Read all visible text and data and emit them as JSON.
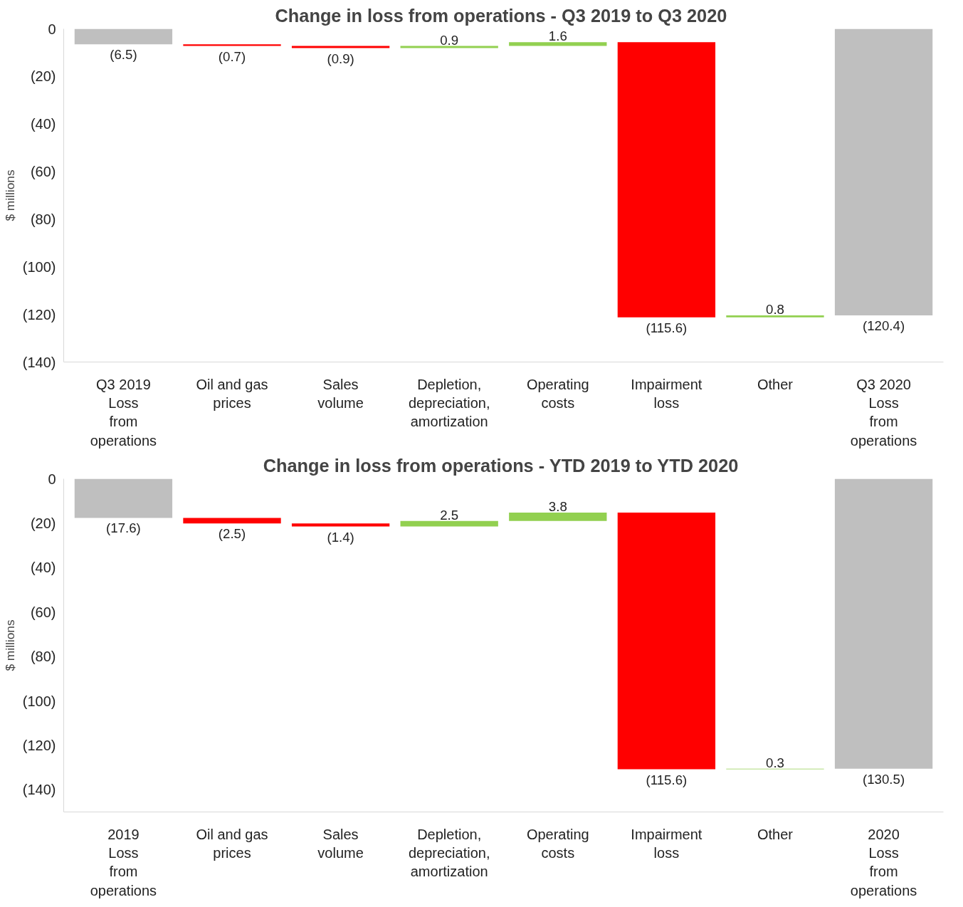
{
  "chart_data": [
    {
      "type": "bar",
      "title": "Change in loss from operations  - Q3 2019 to Q3 2020",
      "ylabel": "$ millions",
      "categories": [
        "Q3 2019\nLoss\nfrom\noperations",
        "Oil and gas\nprices",
        "Sales\nvolume",
        "Depletion,\ndepreciation,\namortization",
        "Operating\ncosts",
        "Impairment\nloss",
        "Other",
        "Q3 2020\nLoss\nfrom\noperations"
      ],
      "values": [
        -6.5,
        -0.7,
        -0.9,
        0.9,
        1.6,
        -115.6,
        0.8,
        -120.4
      ],
      "base": [
        0,
        -6.5,
        -7.2,
        -8.1,
        -7.2,
        -5.6,
        -121.2,
        0
      ],
      "colors": [
        "#bfbfbf",
        "#ff0000",
        "#ff0000",
        "#92d050",
        "#92d050",
        "#ff0000",
        "#92d050",
        "#bfbfbf"
      ],
      "value_labels": [
        "(6.5)",
        "(0.7)",
        "(0.9)",
        "0.9",
        "1.6",
        "(115.6)",
        "0.8",
        "(120.4)"
      ],
      "ylim": [
        -140,
        0
      ],
      "yticks": [
        0,
        {
          "value": -20,
          "label": "(20)"
        },
        {
          "value": -40,
          "label": "(40)"
        },
        {
          "value": -60,
          "label": "(60)"
        },
        {
          "value": -80,
          "label": "(80)"
        },
        {
          "value": -100,
          "label": "(100)"
        },
        {
          "value": -120,
          "label": "(120)"
        },
        {
          "value": -140,
          "label": "(140)"
        }
      ]
    },
    {
      "type": "bar",
      "title": "Change in loss from operations  - YTD 2019 to YTD 2020",
      "ylabel": "$ millions",
      "categories": [
        "2019\nLoss\nfrom\noperations",
        "Oil and gas\nprices",
        "Sales\nvolume",
        "Depletion,\ndepreciation,\namortization",
        "Operating\ncosts",
        "Impairment\nloss",
        "Other",
        "2020\nLoss\nfrom\noperations"
      ],
      "values": [
        -17.6,
        -2.5,
        -1.4,
        2.5,
        3.8,
        -115.6,
        0.3,
        -130.5
      ],
      "base": [
        0,
        -17.6,
        -20.1,
        -21.5,
        -19.0,
        -15.2,
        -130.8,
        0
      ],
      "colors": [
        "#bfbfbf",
        "#ff0000",
        "#ff0000",
        "#92d050",
        "#92d050",
        "#ff0000",
        "#92d050",
        "#bfbfbf"
      ],
      "value_labels": [
        "(17.6)",
        "(2.5)",
        "(1.4)",
        "2.5",
        "3.8",
        "(115.6)",
        "0.3",
        "(130.5)"
      ],
      "ylim": [
        -150,
        0
      ],
      "yticks": [
        0,
        {
          "value": -20,
          "label": "(20)"
        },
        {
          "value": -40,
          "label": "(40)"
        },
        {
          "value": -60,
          "label": "(60)"
        },
        {
          "value": -80,
          "label": "(80)"
        },
        {
          "value": -100,
          "label": "(100)"
        },
        {
          "value": -120,
          "label": "(120)"
        },
        {
          "value": -140,
          "label": "(140)"
        }
      ]
    }
  ]
}
